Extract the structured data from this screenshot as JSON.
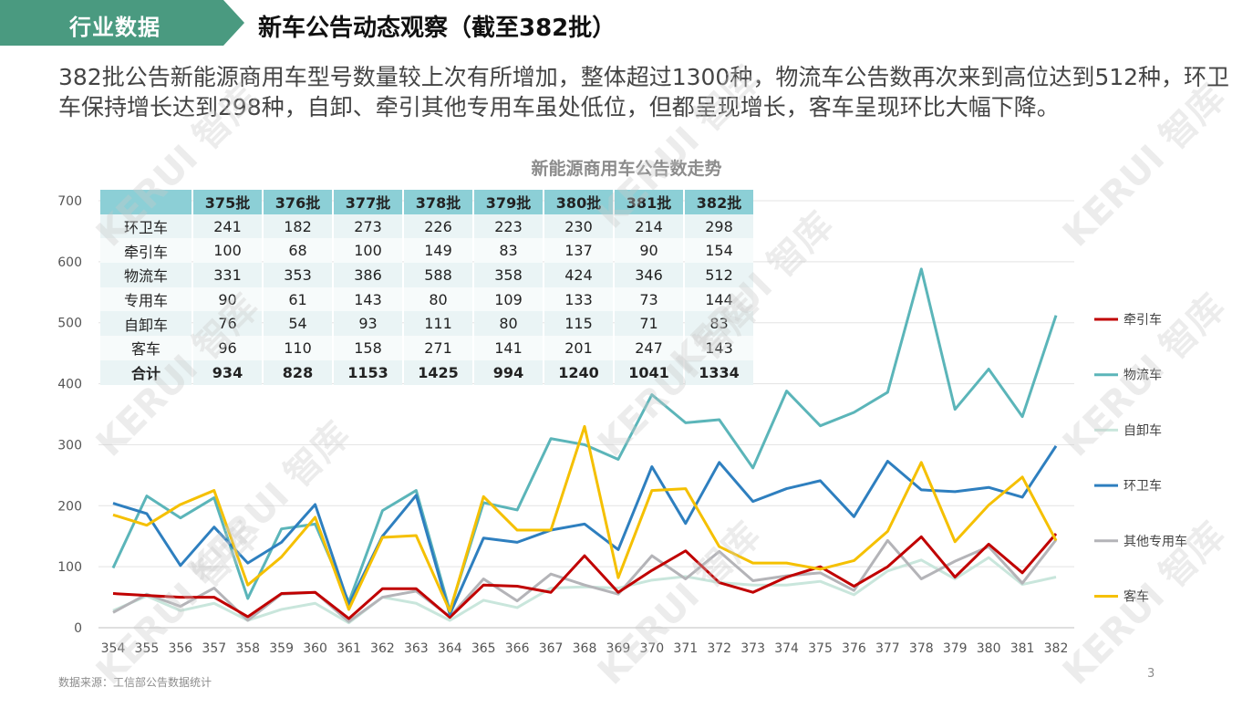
{
  "header": {
    "tag_label": "行业数据",
    "title": "新车公告动态观察（截至382批）",
    "tag_color": "#4a9a80"
  },
  "summary": "382批公告新能源商用车型号数量较上次有所增加，整体超过1300种，物流车公告数再次来到高位达到512种，环卫车保持增长达到298种，自卸、牵引其他专用车虽处低位，但都呈现增长，客车呈现环比大幅下降。",
  "watermark": "KERUI 智库",
  "table": {
    "columns": [
      "375批",
      "376批",
      "377批",
      "378批",
      "379批",
      "380批",
      "381批",
      "382批"
    ],
    "rows": [
      {
        "label": "环卫车",
        "values": [
          "241",
          "182",
          "273",
          "226",
          "223",
          "230",
          "214",
          "298"
        ]
      },
      {
        "label": "牵引车",
        "values": [
          "100",
          "68",
          "100",
          "149",
          "83",
          "137",
          "90",
          "154"
        ]
      },
      {
        "label": "物流车",
        "values": [
          "331",
          "353",
          "386",
          "588",
          "358",
          "424",
          "346",
          "512"
        ]
      },
      {
        "label": "专用车",
        "values": [
          "90",
          "61",
          "143",
          "80",
          "109",
          "133",
          "73",
          "144"
        ]
      },
      {
        "label": "自卸车",
        "values": [
          "76",
          "54",
          "93",
          "111",
          "80",
          "115",
          "71",
          "83"
        ]
      },
      {
        "label": "客车",
        "values": [
          "96",
          "110",
          "158",
          "271",
          "141",
          "201",
          "247",
          "143"
        ]
      },
      {
        "label": "合计",
        "values": [
          "934",
          "828",
          "1153",
          "1425",
          "994",
          "1240",
          "1041",
          "1334"
        ]
      }
    ]
  },
  "chart_data": {
    "type": "line",
    "title": "新能源商用车公告数走势",
    "xlabel": "",
    "ylabel": "",
    "x": [
      "354",
      "355",
      "356",
      "357",
      "358",
      "359",
      "360",
      "361",
      "362",
      "363",
      "364",
      "365",
      "366",
      "367",
      "368",
      "369",
      "370",
      "371",
      "372",
      "373",
      "374",
      "375",
      "376",
      "377",
      "378",
      "379",
      "380",
      "381",
      "382"
    ],
    "ylim": [
      0,
      700
    ],
    "yticks": [
      0,
      100,
      200,
      300,
      400,
      500,
      600,
      700
    ],
    "grid": true,
    "legend_position": "right",
    "series": [
      {
        "name": "牵引车",
        "color": "#c00000",
        "values": [
          56,
          53,
          50,
          50,
          18,
          56,
          58,
          15,
          64,
          64,
          17,
          70,
          68,
          58,
          118,
          58,
          94,
          126,
          74,
          58,
          83,
          100,
          68,
          100,
          149,
          83,
          137,
          90,
          154
        ]
      },
      {
        "name": "物流车",
        "color": "#5bb5b9",
        "values": [
          98,
          216,
          180,
          213,
          48,
          162,
          170,
          42,
          192,
          225,
          28,
          205,
          193,
          310,
          300,
          276,
          382,
          336,
          341,
          262,
          388,
          331,
          353,
          386,
          588,
          358,
          424,
          346,
          512
        ]
      },
      {
        "name": "自卸车",
        "color": "#c9e6dc",
        "values": [
          28,
          52,
          28,
          40,
          12,
          30,
          40,
          8,
          50,
          40,
          12,
          45,
          33,
          65,
          67,
          65,
          78,
          84,
          74,
          70,
          70,
          76,
          54,
          93,
          111,
          80,
          115,
          71,
          83
        ]
      },
      {
        "name": "环卫车",
        "color": "#2e7fbf",
        "values": [
          204,
          187,
          102,
          165,
          106,
          140,
          202,
          38,
          150,
          217,
          22,
          147,
          140,
          160,
          170,
          128,
          264,
          171,
          271,
          207,
          228,
          241,
          182,
          273,
          226,
          223,
          230,
          214,
          298
        ]
      },
      {
        "name": "其他专用车",
        "color": "#b4b4b8",
        "values": [
          25,
          55,
          35,
          65,
          12,
          55,
          58,
          10,
          50,
          60,
          18,
          80,
          44,
          88,
          70,
          55,
          118,
          80,
          125,
          77,
          85,
          90,
          61,
          143,
          80,
          109,
          133,
          73,
          144
        ]
      },
      {
        "name": "客车",
        "color": "#f5c000",
        "values": [
          185,
          168,
          202,
          225,
          70,
          116,
          181,
          30,
          148,
          151,
          27,
          215,
          160,
          160,
          330,
          82,
          225,
          228,
          133,
          106,
          106,
          96,
          110,
          158,
          271,
          141,
          201,
          247,
          143
        ]
      }
    ]
  },
  "footer": {
    "source": "数据来源：工信部公告数据统计",
    "page_number": "3"
  }
}
